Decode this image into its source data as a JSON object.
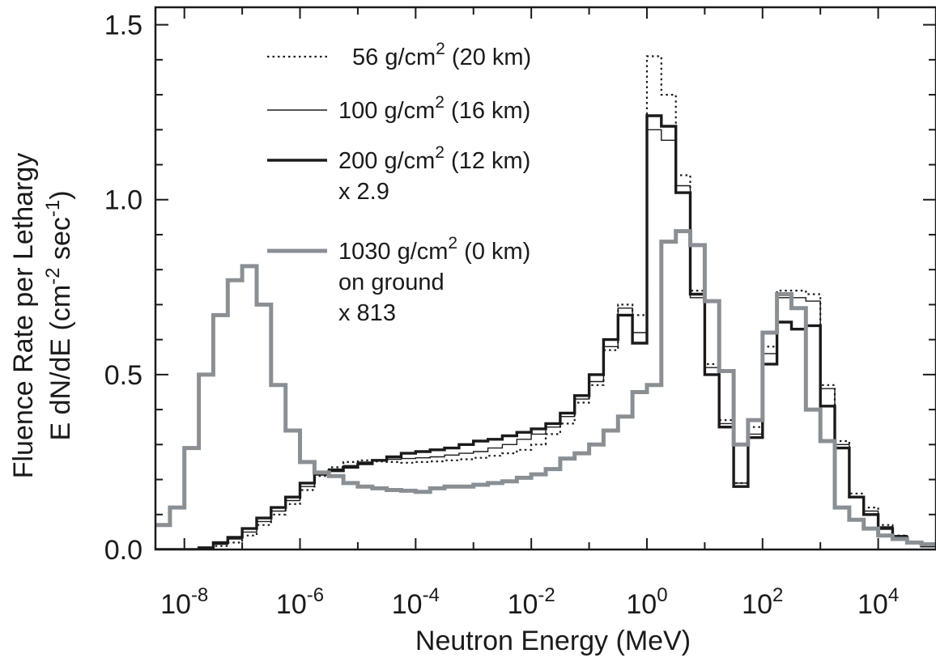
{
  "chart_data": {
    "type": "line",
    "title": "",
    "xlabel": "Neutron Energy  (MeV)",
    "ylabel_line1": "Fluence Rate per Lethargy",
    "ylabel_line2_prefix": "E dN/dE (cm",
    "ylabel_line2_mid": " sec",
    "ylabel_line2_suffix": ")",
    "ylabel_exp1": "-2",
    "ylabel_exp2": "-1",
    "x_scale": "log",
    "xlim": [
      3.162e-09,
      100000.0
    ],
    "ylim": [
      0,
      1.55
    ],
    "x_ticks": [
      {
        "value": 1e-08,
        "base": "10",
        "exp": "-8"
      },
      {
        "value": 1e-06,
        "base": "10",
        "exp": "-6"
      },
      {
        "value": 0.0001,
        "base": "10",
        "exp": "-4"
      },
      {
        "value": 0.01,
        "base": "10",
        "exp": "-2"
      },
      {
        "value": 1,
        "base": "10",
        "exp": "0"
      },
      {
        "value": 100,
        "base": "10",
        "exp": "2"
      },
      {
        "value": 10000,
        "base": "10",
        "exp": "4"
      }
    ],
    "y_ticks": [
      {
        "value": 0.0,
        "label": "0.0"
      },
      {
        "value": 0.5,
        "label": "0.5"
      },
      {
        "value": 1.0,
        "label": "1.0"
      },
      {
        "value": 1.5,
        "label": "1.5"
      }
    ],
    "bin_edges_log10": [
      -8.5,
      -8.25,
      -8.0,
      -7.75,
      -7.5,
      -7.25,
      -7.0,
      -6.75,
      -6.5,
      -6.25,
      -6.0,
      -5.75,
      -5.5,
      -5.25,
      -5.0,
      -4.75,
      -4.5,
      -4.25,
      -4.0,
      -3.75,
      -3.5,
      -3.25,
      -3.0,
      -2.75,
      -2.5,
      -2.25,
      -2.0,
      -1.75,
      -1.5,
      -1.25,
      -1.0,
      -0.75,
      -0.5,
      -0.25,
      0.0,
      0.25,
      0.5,
      0.75,
      1.0,
      1.25,
      1.5,
      1.75,
      2.0,
      2.25,
      2.5,
      2.75,
      3.0,
      3.25,
      3.5,
      3.75,
      4.0,
      4.25,
      4.5,
      4.75,
      5.0
    ],
    "legend_position": "top-center",
    "series": [
      {
        "name": "56 g/cm",
        "name_sup": "2",
        "name_suffix": " (20 km)",
        "name_line2": "",
        "name_line3": "",
        "style": "dotted",
        "color": "#1a1a1a",
        "values": [
          0.0,
          0.0,
          0.0,
          0.002,
          0.01,
          0.02,
          0.04,
          0.07,
          0.1,
          0.13,
          0.17,
          0.21,
          0.235,
          0.25,
          0.255,
          0.252,
          0.25,
          0.248,
          0.25,
          0.252,
          0.255,
          0.258,
          0.262,
          0.268,
          0.275,
          0.285,
          0.3,
          0.33,
          0.36,
          0.42,
          0.47,
          0.57,
          0.7,
          0.67,
          1.41,
          1.3,
          1.07,
          0.74,
          0.53,
          0.37,
          0.19,
          0.35,
          0.58,
          0.74,
          0.74,
          0.73,
          0.47,
          0.31,
          0.16,
          0.12,
          0.07,
          0.04,
          0.02,
          0.01
        ]
      },
      {
        "name": "100 g/cm",
        "name_sup": "2",
        "name_suffix": " (16 km)",
        "name_line2": "",
        "name_line3": "",
        "style": "thin",
        "color": "#1a1a1a",
        "values": [
          0.0,
          0.0,
          0.0,
          0.003,
          0.015,
          0.03,
          0.05,
          0.08,
          0.11,
          0.14,
          0.18,
          0.215,
          0.23,
          0.24,
          0.25,
          0.255,
          0.258,
          0.26,
          0.262,
          0.265,
          0.27,
          0.275,
          0.28,
          0.29,
          0.3,
          0.315,
          0.33,
          0.35,
          0.38,
          0.43,
          0.48,
          0.58,
          0.69,
          0.62,
          1.2,
          1.17,
          1.04,
          0.72,
          0.52,
          0.36,
          0.19,
          0.33,
          0.56,
          0.72,
          0.72,
          0.71,
          0.46,
          0.3,
          0.15,
          0.11,
          0.065,
          0.04,
          0.02,
          0.01
        ]
      },
      {
        "name": "200 g/cm",
        "name_sup": "2",
        "name_suffix": " (12 km)",
        "name_line2": "x 2.9",
        "name_line3": "",
        "style": "thick",
        "color": "#1a1a1a",
        "values": [
          0.0,
          0.0,
          0.0,
          0.005,
          0.02,
          0.035,
          0.06,
          0.09,
          0.12,
          0.15,
          0.19,
          0.215,
          0.225,
          0.235,
          0.245,
          0.255,
          0.265,
          0.275,
          0.28,
          0.285,
          0.29,
          0.3,
          0.31,
          0.315,
          0.325,
          0.335,
          0.345,
          0.36,
          0.39,
          0.44,
          0.5,
          0.6,
          0.67,
          0.59,
          1.24,
          1.21,
          1.02,
          0.73,
          0.5,
          0.35,
          0.18,
          0.32,
          0.53,
          0.65,
          0.63,
          0.64,
          0.41,
          0.29,
          0.15,
          0.1,
          0.06,
          0.035,
          0.02,
          0.01
        ]
      },
      {
        "name": "1030 g/cm",
        "name_sup": "2",
        "name_suffix": " (0 km)",
        "name_line2": "on ground",
        "name_line3": "x 813",
        "style": "gray",
        "color": "#8a8f94",
        "values": [
          0.07,
          0.12,
          0.29,
          0.5,
          0.67,
          0.77,
          0.81,
          0.7,
          0.47,
          0.34,
          0.25,
          0.22,
          0.21,
          0.19,
          0.18,
          0.175,
          0.17,
          0.168,
          0.165,
          0.175,
          0.18,
          0.18,
          0.185,
          0.19,
          0.195,
          0.205,
          0.215,
          0.23,
          0.26,
          0.275,
          0.3,
          0.34,
          0.38,
          0.45,
          0.47,
          0.88,
          0.91,
          0.87,
          0.71,
          0.51,
          0.3,
          0.37,
          0.62,
          0.73,
          0.69,
          0.4,
          0.31,
          0.12,
          0.085,
          0.06,
          0.04,
          0.03,
          0.02,
          0.015
        ]
      }
    ]
  }
}
